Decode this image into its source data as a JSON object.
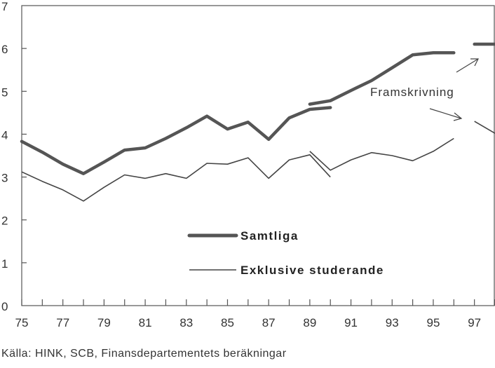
{
  "chart_data": {
    "type": "line",
    "title": "",
    "xlabel": "",
    "ylabel": "",
    "xlim": [
      75,
      98
    ],
    "ylim": [
      0,
      7
    ],
    "x_ticks_labeled": [
      "75",
      "77",
      "79",
      "81",
      "83",
      "85",
      "87",
      "89",
      "91",
      "93",
      "95",
      "97"
    ],
    "y_ticks": [
      "0",
      "1",
      "2",
      "3",
      "4",
      "5",
      "6",
      "7"
    ],
    "grid": false,
    "series": [
      {
        "name": "Samtliga",
        "style": "thick",
        "color": "#555555",
        "x": [
          75,
          76,
          77,
          78,
          79,
          80,
          81,
          82,
          83,
          84,
          85,
          86,
          87,
          88,
          89,
          90
        ],
        "values": [
          3.83,
          3.58,
          3.3,
          3.08,
          3.35,
          3.63,
          3.68,
          3.9,
          4.15,
          4.42,
          4.12,
          4.28,
          3.88,
          4.38,
          4.58,
          4.62
        ]
      },
      {
        "name": "",
        "style": "thick",
        "color": "#555555",
        "x": [
          89,
          90,
          91,
          92,
          93,
          94,
          95,
          96
        ],
        "values": [
          4.7,
          4.78,
          5.02,
          5.25,
          5.55,
          5.85,
          5.9,
          5.9
        ]
      },
      {
        "name": "",
        "style": "thick",
        "color": "#555555",
        "x": [
          97,
          98
        ],
        "values": [
          6.1,
          6.1
        ]
      },
      {
        "name": "Exklusive studerande",
        "style": "thin",
        "color": "#444444",
        "x": [
          75,
          76,
          77,
          78,
          79,
          80,
          81,
          82,
          83,
          84,
          85,
          86,
          87,
          88,
          89,
          90
        ],
        "values": [
          3.12,
          2.9,
          2.7,
          2.44,
          2.76,
          3.05,
          2.97,
          3.08,
          2.97,
          3.32,
          3.3,
          3.45,
          2.97,
          3.4,
          3.52,
          3.0
        ]
      },
      {
        "name": "",
        "style": "thin",
        "color": "#444444",
        "x": [
          89,
          90,
          91,
          92,
          93,
          94,
          95,
          96
        ],
        "values": [
          3.6,
          3.16,
          3.4,
          3.57,
          3.5,
          3.38,
          3.6,
          3.9
        ]
      },
      {
        "name": "",
        "style": "thin",
        "color": "#444444",
        "x": [
          97,
          98
        ],
        "values": [
          4.3,
          4.02
        ]
      }
    ],
    "annotations": [
      {
        "text": "Framskrivning"
      }
    ],
    "legend": [
      {
        "label": "Samtliga",
        "style": "thick"
      },
      {
        "label": "Exklusive studerande",
        "style": "thin"
      }
    ],
    "legend_position": "bottom-center"
  },
  "source_note": "Källa: HINK, SCB, Finansdepartementets beräkningar"
}
